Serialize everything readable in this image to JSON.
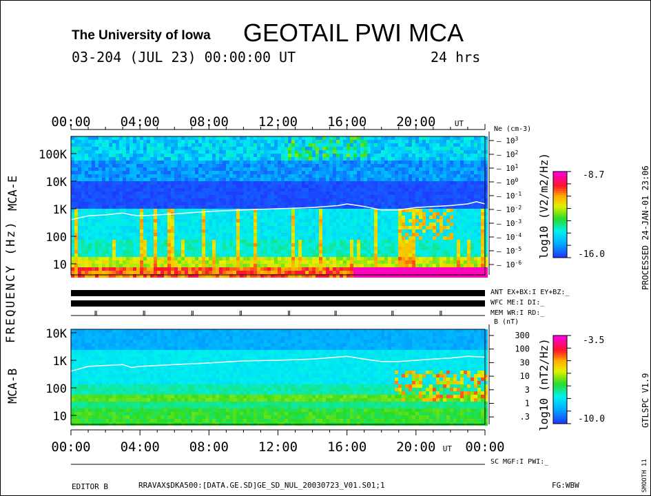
{
  "header": {
    "institution": "The University of Iowa",
    "title": "GEOTAIL PWI MCA",
    "date_line": "03-204 (JUL 23) 00:00:00 UT",
    "duration": "24 hrs"
  },
  "chart_data": [
    {
      "type": "heatmap",
      "panel": "MCA-E",
      "ylabel": "FREQUENCY (Hz)",
      "panel_label": "MCA-E",
      "x_ticks": [
        "00:00",
        "04:00",
        "08:00",
        "12:00",
        "16:00",
        "20:00"
      ],
      "x_unit": "UT",
      "y_scale": "log",
      "y_ticks": [
        "10",
        "100",
        "1K",
        "10K",
        "100K"
      ],
      "right_axis": {
        "label": "Ne (cm-3)",
        "ticks": [
          "10^3",
          "10^2",
          "10^1",
          "10^0",
          "10^-1",
          "10^-2",
          "10^-3",
          "10^-4",
          "10^-5",
          "10^-6"
        ]
      },
      "colorbar": {
        "label": "log10 (V2/m2/Hz)",
        "max": "-8.7",
        "min": "-16.0"
      },
      "density_line_hz": {
        "hours": [
          0,
          1,
          2,
          3,
          3.5,
          4,
          6,
          8,
          10,
          12,
          14,
          15.5,
          16,
          17,
          18,
          19,
          20,
          21,
          22,
          23,
          23.5,
          24
        ],
        "values": [
          400,
          550,
          600,
          700,
          600,
          550,
          650,
          800,
          900,
          1000,
          1100,
          1300,
          1500,
          1200,
          900,
          900,
          1100,
          1200,
          1300,
          1500,
          1800,
          1500
        ]
      }
    },
    {
      "type": "heatmap",
      "panel": "MCA-B",
      "panel_label": "MCA-B",
      "x_ticks": [
        "00:00",
        "04:00",
        "08:00",
        "12:00",
        "16:00",
        "20:00",
        "00:00"
      ],
      "x_unit": "UT",
      "y_scale": "log",
      "y_ticks": [
        "10",
        "100",
        "1K",
        "10K"
      ],
      "right_axis": {
        "label": "B (nT)",
        "ticks": [
          "300",
          "100",
          "30",
          "10",
          "3",
          "1",
          ".3"
        ]
      },
      "colorbar": {
        "label": "log10 (nT2/Hz)",
        "max": "-3.5",
        "min": "-10.0"
      },
      "density_line_hz": {
        "hours": [
          0,
          1,
          2,
          3,
          3.5,
          4,
          6,
          8,
          10,
          12,
          14,
          16,
          17,
          18,
          19,
          20,
          21,
          22,
          23,
          24
        ],
        "values": [
          400,
          600,
          650,
          700,
          550,
          600,
          700,
          800,
          950,
          1000,
          1100,
          1400,
          1100,
          900,
          900,
          1000,
          1100,
          1200,
          1400,
          1300
        ]
      }
    }
  ],
  "status": {
    "ant": "ANT EX+BX:I  EY+BZ:_",
    "wfc": "WFC ME:I     DI:_",
    "mem": "MEM WR:I     RD:_",
    "sc": "SC MGF:I     PWI:_"
  },
  "side": {
    "processed": "PROCESSED 24-JAN-01  23:06",
    "version": "GTLSPC   V1.9",
    "smooth": "SMOOTH 11"
  },
  "footer": {
    "editor": "EDITOR B",
    "file": "RRAVAX$DKA500:[DATA.GE.SD]GE_SD_NUL_20030723_V01.S01;1",
    "fg": "FG:WBW"
  }
}
